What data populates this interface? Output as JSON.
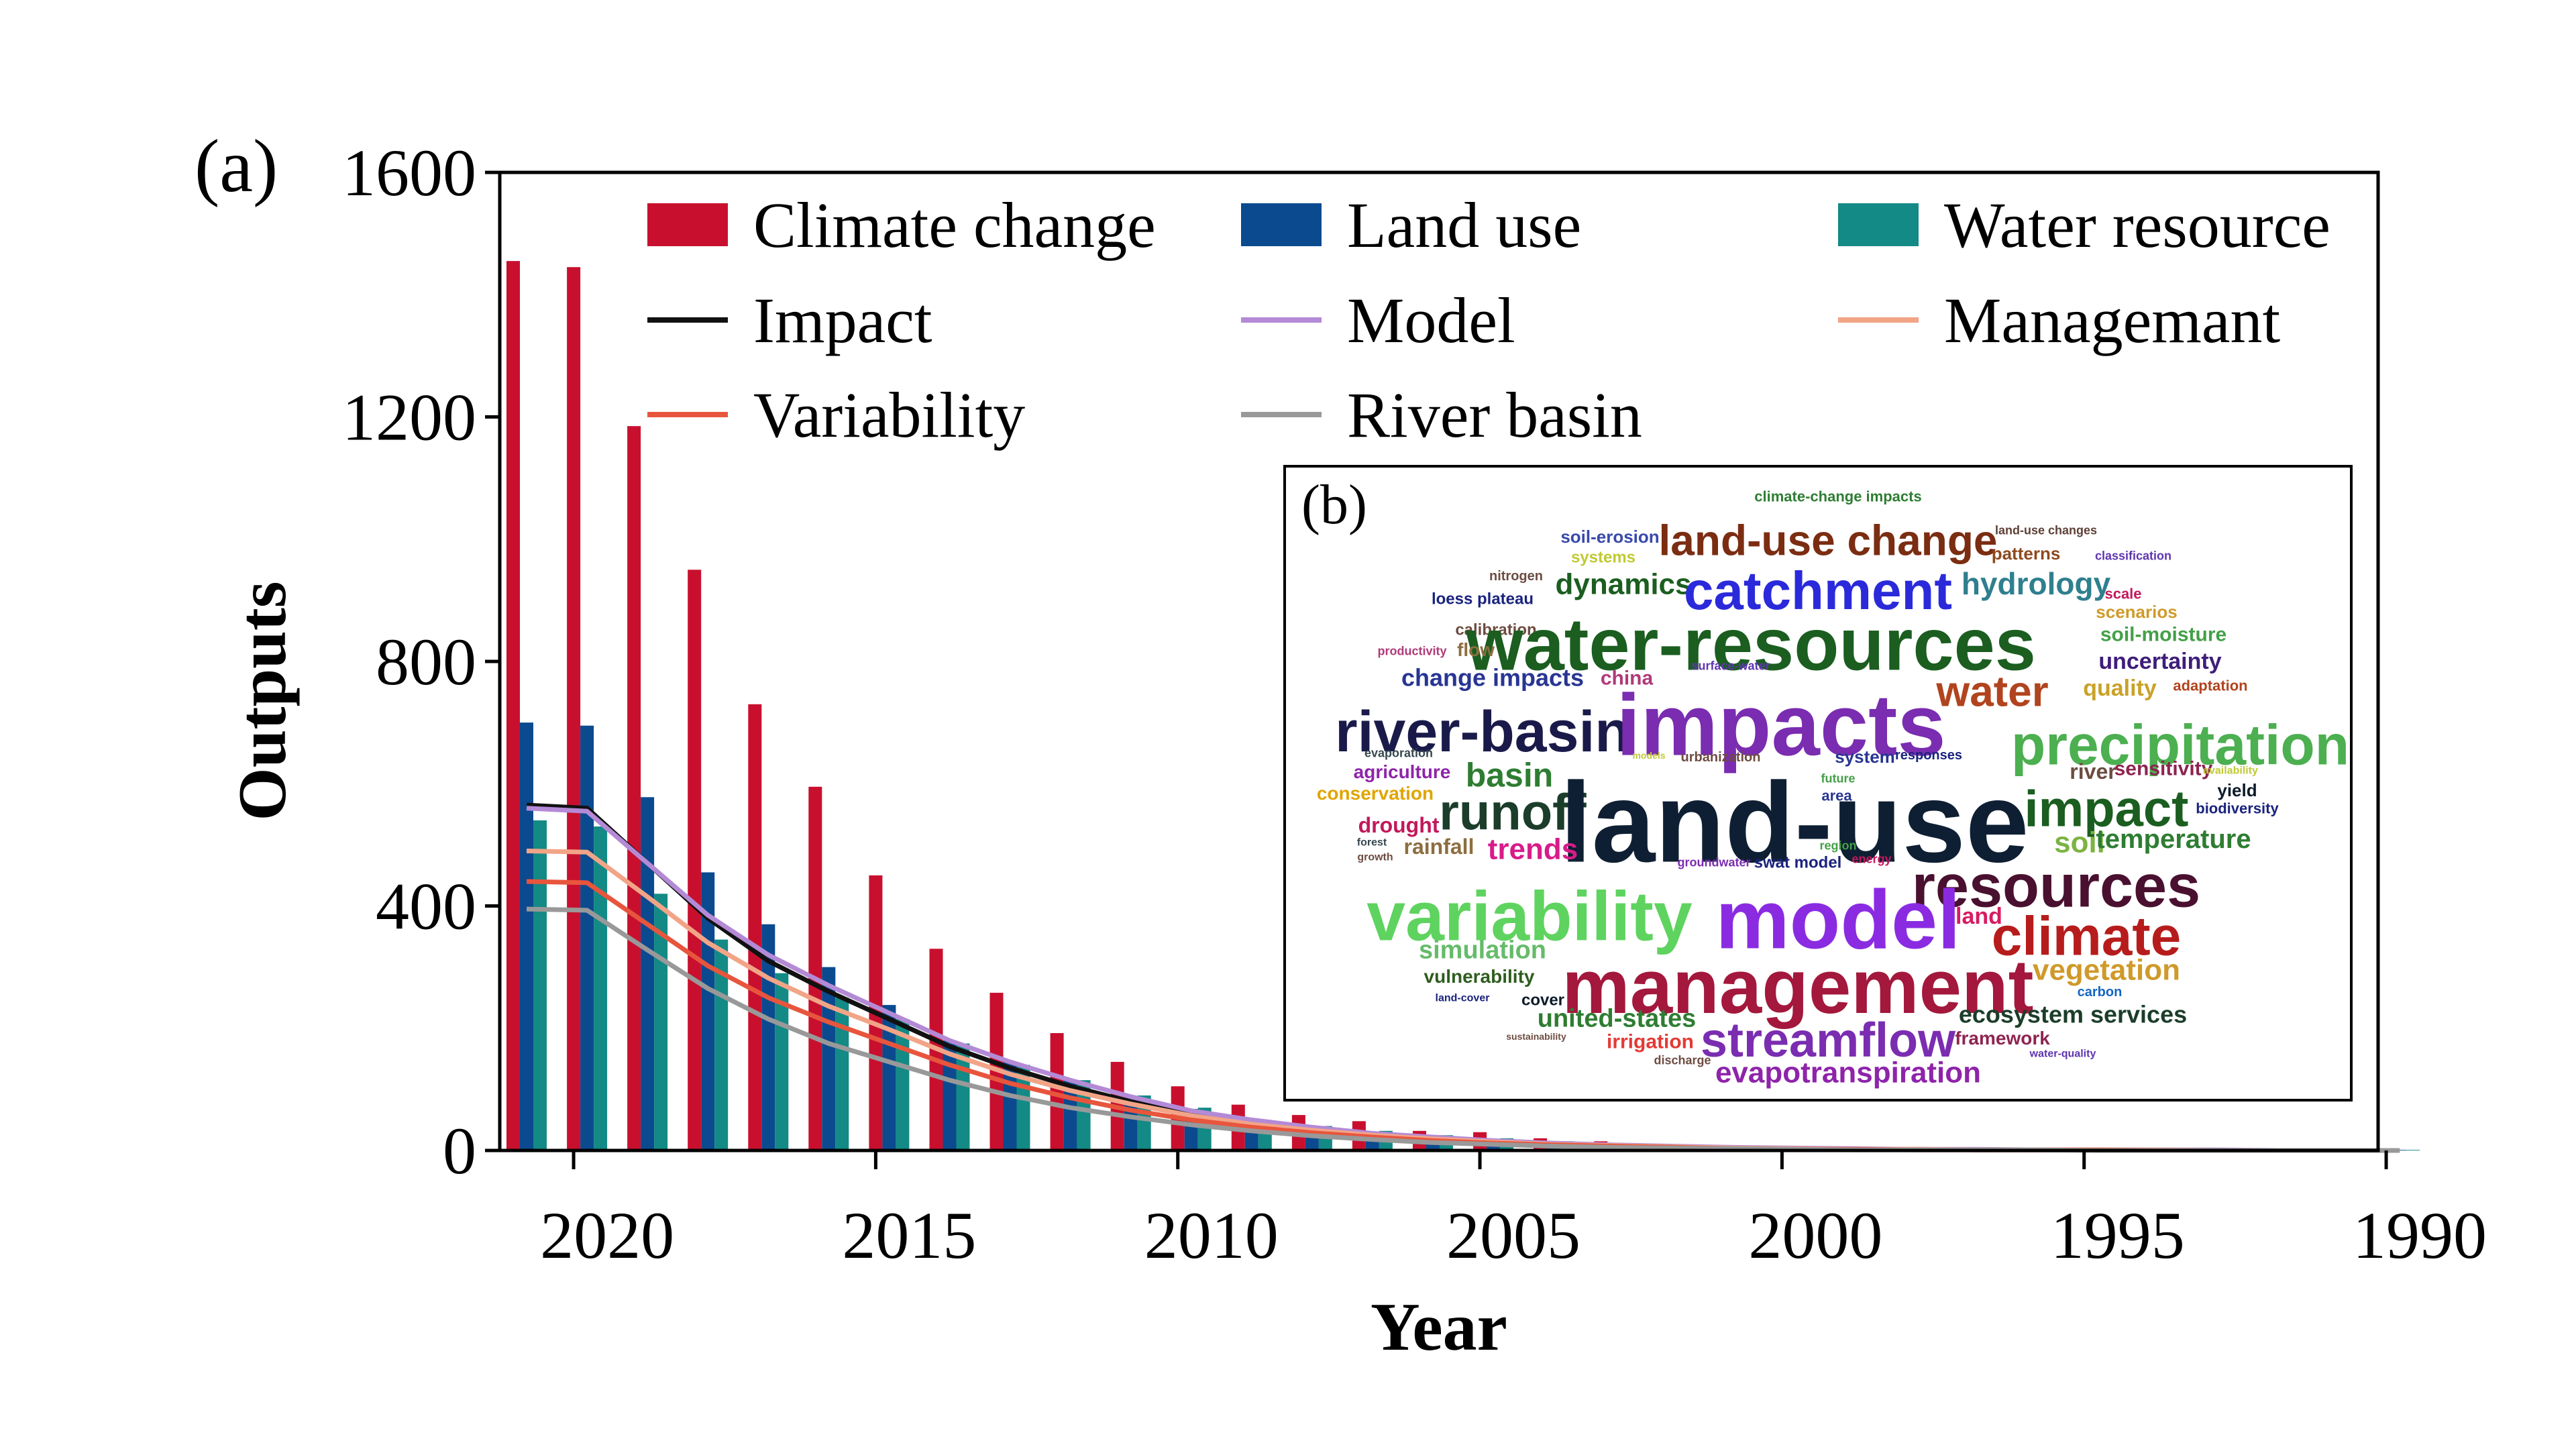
{
  "panel_a_label": "(a)",
  "panel_b_label": "(b)",
  "chart_data": {
    "type": "bar",
    "xlabel": "Year",
    "ylabel": "Outputs",
    "x_ticks": [
      "2020",
      "2015",
      "2010",
      "2005",
      "2000",
      "1995",
      "1990"
    ],
    "y_ticks": [
      "0",
      "400",
      "800",
      "1200",
      "1600"
    ],
    "ylim": [
      0,
      1600
    ],
    "xlim": [
      2021,
      1990
    ],
    "x_reversed": true,
    "legend_placement": "top, 3 columns",
    "categories": [
      2021,
      2020,
      2019,
      2018,
      2017,
      2016,
      2015,
      2014,
      2013,
      2012,
      2011,
      2010,
      2009,
      2008,
      2007,
      2006,
      2005,
      2004,
      2003,
      2002,
      2001,
      2000,
      1999,
      1998,
      1997,
      1996,
      1995,
      1994,
      1993,
      1992,
      1991,
      1990
    ],
    "bar_series": [
      {
        "name": "Climate change",
        "color": "#c8102e",
        "values": [
          1455,
          1445,
          1185,
          950,
          730,
          595,
          450,
          330,
          258,
          192,
          145,
          105,
          75,
          58,
          48,
          32,
          30,
          20,
          15,
          10,
          8,
          6,
          5,
          4,
          3,
          3,
          2,
          2,
          2,
          1,
          1,
          1
        ]
      },
      {
        "name": "Land use",
        "color": "#0b4a8f",
        "values": [
          700,
          695,
          578,
          455,
          370,
          300,
          238,
          180,
          145,
          115,
          88,
          68,
          48,
          38,
          30,
          22,
          18,
          13,
          10,
          7,
          6,
          4,
          3,
          3,
          2,
          2,
          2,
          1,
          1,
          1,
          1,
          1
        ]
      },
      {
        "name": "Water resource",
        "color": "#138a85",
        "values": [
          540,
          530,
          420,
          345,
          290,
          250,
          215,
          175,
          140,
          115,
          90,
          70,
          50,
          40,
          32,
          25,
          20,
          15,
          11,
          8,
          6,
          5,
          4,
          3,
          3,
          2,
          2,
          2,
          1,
          1,
          1,
          1
        ]
      }
    ],
    "line_series": [
      {
        "name": "Impact",
        "color": "#111111",
        "values": [
          565,
          560,
          470,
          380,
          310,
          260,
          215,
          170,
          135,
          105,
          80,
          60,
          45,
          35,
          25,
          20,
          15,
          11,
          8,
          6,
          4,
          3,
          2,
          2,
          1,
          1,
          1,
          1,
          0,
          0,
          0,
          0
        ]
      },
      {
        "name": "Model",
        "color": "#b48ad6",
        "values": [
          560,
          555,
          470,
          385,
          320,
          270,
          225,
          180,
          145,
          115,
          88,
          65,
          50,
          38,
          28,
          22,
          16,
          12,
          9,
          7,
          5,
          4,
          3,
          2,
          2,
          1,
          1,
          1,
          1,
          0,
          0,
          0
        ]
      },
      {
        "name": "Managemant",
        "color": "#f2a487",
        "values": [
          490,
          488,
          415,
          340,
          282,
          236,
          198,
          158,
          125,
          98,
          76,
          57,
          43,
          33,
          25,
          19,
          14,
          10,
          8,
          6,
          4,
          3,
          2,
          2,
          1,
          1,
          1,
          1,
          0,
          0,
          0,
          0
        ]
      },
      {
        "name": "Variability",
        "color": "#e8553d",
        "values": [
          440,
          438,
          370,
          302,
          250,
          210,
          175,
          140,
          110,
          86,
          66,
          50,
          38,
          29,
          22,
          16,
          12,
          9,
          7,
          5,
          3,
          2,
          2,
          1,
          1,
          1,
          1,
          0,
          0,
          0,
          0,
          0
        ]
      },
      {
        "name": "River basin",
        "color": "#999999",
        "values": [
          395,
          393,
          328,
          265,
          215,
          175,
          145,
          115,
          90,
          70,
          55,
          42,
          32,
          24,
          18,
          13,
          10,
          7,
          5,
          4,
          3,
          2,
          1,
          1,
          1,
          1,
          0,
          0,
          0,
          0,
          0,
          0
        ]
      }
    ]
  },
  "word_cloud": [
    {
      "t": "climate-change impacts",
      "c": "#2e7d32"
    },
    {
      "t": "land-use changes",
      "c": "#5d4037"
    },
    {
      "t": "soil-erosion",
      "c": "#3949ab"
    },
    {
      "t": "land-use change",
      "c": "#7b2d12"
    },
    {
      "t": "patterns",
      "c": "#8e4a1f"
    },
    {
      "t": "classification",
      "c": "#5e35b1"
    },
    {
      "t": "systems",
      "c": "#c0ca33"
    },
    {
      "t": "nitrogen",
      "c": "#6d4c41"
    },
    {
      "t": "dynamics",
      "c": "#1b5e20"
    },
    {
      "t": "catchment",
      "c": "#2a2adb"
    },
    {
      "t": "hydrology",
      "c": "#2f7f8f"
    },
    {
      "t": "loess plateau",
      "c": "#1a237e"
    },
    {
      "t": "scale",
      "c": "#c2185b"
    },
    {
      "t": "scenarios",
      "c": "#cf9a2b"
    },
    {
      "t": "calibration",
      "c": "#6d4c41"
    },
    {
      "t": "water-resources",
      "c": "#1b5e20"
    },
    {
      "t": "soil-moisture",
      "c": "#43a047"
    },
    {
      "t": "productivity",
      "c": "#b03a7a"
    },
    {
      "t": "flow",
      "c": "#8d6e3f"
    },
    {
      "t": "surface-water",
      "c": "#5e35b1"
    },
    {
      "t": "uncertainty",
      "c": "#3f1d7a"
    },
    {
      "t": "change impacts",
      "c": "#283593"
    },
    {
      "t": "china",
      "c": "#b03a7a"
    },
    {
      "t": "water",
      "c": "#b1441e"
    },
    {
      "t": "quality",
      "c": "#c9a227"
    },
    {
      "t": "adaptation",
      "c": "#b1441e"
    },
    {
      "t": "river-basin",
      "c": "#1a1a4a"
    },
    {
      "t": "impacts",
      "c": "#7a2db0"
    },
    {
      "t": "precipitation",
      "c": "#4caf50"
    },
    {
      "t": "evaporation",
      "c": "#37474f"
    },
    {
      "t": "models",
      "c": "#c0ca33"
    },
    {
      "t": "urbanization",
      "c": "#6d4c41"
    },
    {
      "t": "system",
      "c": "#283593"
    },
    {
      "t": "responses",
      "c": "#1a237e"
    },
    {
      "t": "agriculture",
      "c": "#8e24aa"
    },
    {
      "t": "basin",
      "c": "#2e7d32"
    },
    {
      "t": "river",
      "c": "#6d4c41"
    },
    {
      "t": "sensitivity",
      "c": "#8e2450"
    },
    {
      "t": "availability",
      "c": "#c0ca33"
    },
    {
      "t": "future",
      "c": "#43a047"
    },
    {
      "t": "conservation",
      "c": "#e0a500"
    },
    {
      "t": "runoff",
      "c": "#1b3d2a"
    },
    {
      "t": "land-use",
      "c": "#0f1f33"
    },
    {
      "t": "area",
      "c": "#283593"
    },
    {
      "t": "impact",
      "c": "#1b5e20"
    },
    {
      "t": "yield",
      "c": "#0d1b2a"
    },
    {
      "t": "biodiversity",
      "c": "#1a237e"
    },
    {
      "t": "drought",
      "c": "#c2185b"
    },
    {
      "t": "forest",
      "c": "#37474f"
    },
    {
      "t": "rainfall",
      "c": "#8d6e3f"
    },
    {
      "t": "trends",
      "c": "#d81b8a"
    },
    {
      "t": "region",
      "c": "#43a047"
    },
    {
      "t": "soil",
      "c": "#7cb342"
    },
    {
      "t": "temperature",
      "c": "#2e7d32"
    },
    {
      "t": "growth",
      "c": "#6d4c41"
    },
    {
      "t": "groundwater",
      "c": "#7a2db0"
    },
    {
      "t": "swat model",
      "c": "#1a237e"
    },
    {
      "t": "energy",
      "c": "#c2185b"
    },
    {
      "t": "resources",
      "c": "#4a1030"
    },
    {
      "t": "variability",
      "c": "#5fd35f"
    },
    {
      "t": "model",
      "c": "#8a2be2"
    },
    {
      "t": "land",
      "c": "#d81b60"
    },
    {
      "t": "climate",
      "c": "#b71c1c"
    },
    {
      "t": "simulation",
      "c": "#66bb6a"
    },
    {
      "t": "management",
      "c": "#a3183c"
    },
    {
      "t": "vegetation",
      "c": "#cf9a2b"
    },
    {
      "t": "vulnerability",
      "c": "#2e5d1f"
    },
    {
      "t": "carbon",
      "c": "#1565c0"
    },
    {
      "t": "land-cover",
      "c": "#1a237e"
    },
    {
      "t": "cover",
      "c": "#0d1b2a"
    },
    {
      "t": "united-states",
      "c": "#2e7d32"
    },
    {
      "t": "ecosystem services",
      "c": "#1b3d2a"
    },
    {
      "t": "sustainability",
      "c": "#6d4c41"
    },
    {
      "t": "irrigation",
      "c": "#e53935"
    },
    {
      "t": "streamflow",
      "c": "#7a2db0"
    },
    {
      "t": "framework",
      "c": "#8e2450"
    },
    {
      "t": "water-quality",
      "c": "#5e35b1"
    },
    {
      "t": "discharge",
      "c": "#6d4c41"
    },
    {
      "t": "evapotranspiration",
      "c": "#8e24aa"
    }
  ]
}
